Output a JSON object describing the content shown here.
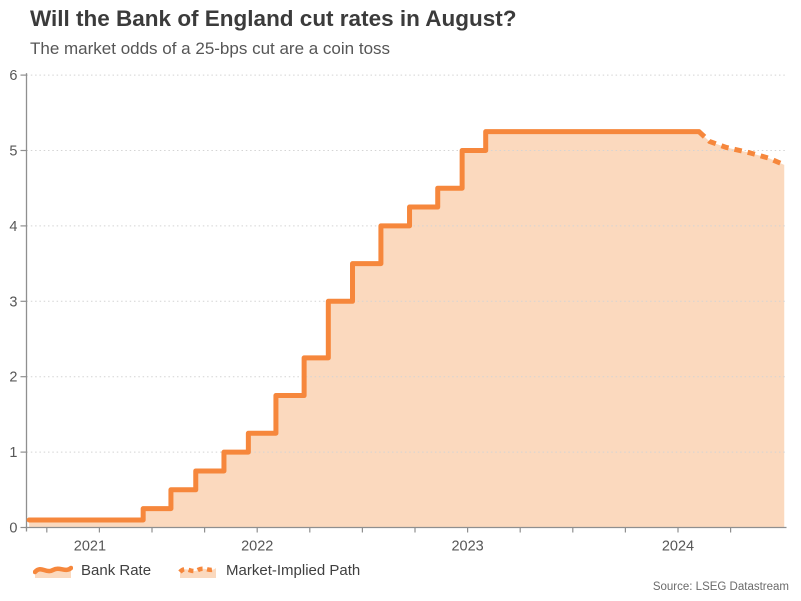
{
  "header": {
    "title": "Will the Bank of England cut rates in August?",
    "subtitle": "The market odds of a 25-bps cut are a coin toss"
  },
  "legend": {
    "bank_rate_label": "Bank Rate",
    "market_implied_label": "Market-Implied Path"
  },
  "source": "Source: LSEG Datastream",
  "colors": {
    "line": "#F6873C",
    "fill": "#FBD9BE",
    "grid": "#d4d4d4",
    "axis": "#8f8f8f",
    "tick_label": "#575757",
    "title": "#3b3b3b",
    "subtitle": "#565656",
    "legend_text": "#404040",
    "source_text": "#6b6b6b"
  },
  "chart_data": {
    "type": "area",
    "title": "Will the Bank of England cut rates in August?",
    "subtitle": "The market odds of a 25-bps cut are a coin toss",
    "xlabel": "",
    "ylabel": "",
    "ylim": [
      0,
      6
    ],
    "y_ticks": [
      0,
      1,
      2,
      3,
      4,
      5,
      6
    ],
    "x_range_years": [
      2021.41,
      2025.01
    ],
    "x_year_labels": [
      "2021",
      "2022",
      "2023",
      "2024"
    ],
    "x_minor_tick_interval_years": 0.25,
    "grid": "horizontal-dotted",
    "legend_position": "bottom-left",
    "series": [
      {
        "name": "Bank Rate",
        "style": "solid-step",
        "comment": "step level starts at given decimal year, percent",
        "steps": [
          [
            2021.416,
            0.1
          ],
          [
            2021.958,
            0.25
          ],
          [
            2022.09,
            0.5
          ],
          [
            2022.208,
            0.75
          ],
          [
            2022.342,
            1.0
          ],
          [
            2022.458,
            1.25
          ],
          [
            2022.589,
            1.75
          ],
          [
            2022.723,
            2.25
          ],
          [
            2022.838,
            3.0
          ],
          [
            2022.953,
            3.5
          ],
          [
            2023.088,
            4.0
          ],
          [
            2023.224,
            4.25
          ],
          [
            2023.358,
            4.5
          ],
          [
            2023.474,
            5.0
          ],
          [
            2023.586,
            5.25
          ]
        ],
        "end_year": 2024.6
      },
      {
        "name": "Market-Implied Path",
        "style": "dashed-line",
        "points": [
          [
            2024.6,
            5.25
          ],
          [
            2024.65,
            5.12
          ],
          [
            2024.73,
            5.04
          ],
          [
            2024.84,
            4.97
          ],
          [
            2024.93,
            4.9
          ],
          [
            2025.005,
            4.81
          ]
        ]
      }
    ]
  }
}
